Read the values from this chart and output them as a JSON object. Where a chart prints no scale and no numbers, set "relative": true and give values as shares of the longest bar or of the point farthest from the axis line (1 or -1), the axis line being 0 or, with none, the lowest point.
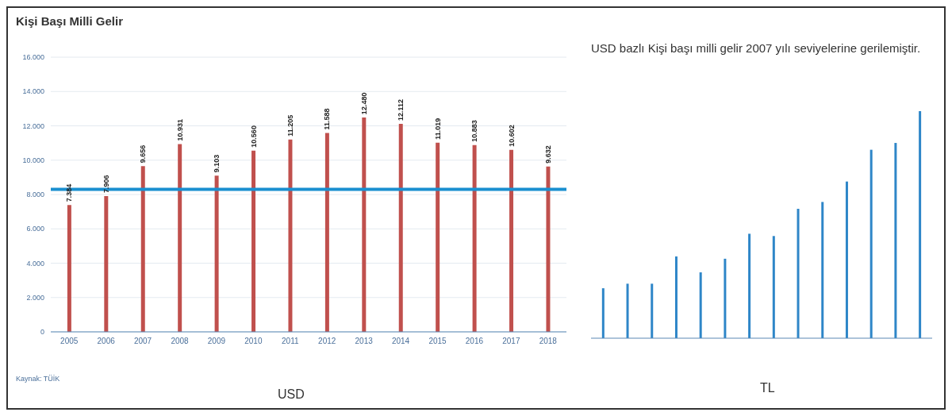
{
  "chart_data": [
    {
      "type": "bar",
      "title": "Kişi Başı Milli Gelir",
      "categories": [
        "2005",
        "2006",
        "2007",
        "2008",
        "2009",
        "2010",
        "2011",
        "2012",
        "2013",
        "2014",
        "2015",
        "2016",
        "2017",
        "2018"
      ],
      "series": [
        {
          "color": "#c0504d",
          "values": [
            7384,
            7906,
            9656,
            10931,
            9103,
            10560,
            11205,
            11588,
            12480,
            12112,
            11019,
            10883,
            10602,
            9632
          ],
          "value_labels": [
            "7.384",
            "7.906",
            "9.656",
            "10.931",
            "9.103",
            "10.560",
            "11.205",
            "11.588",
            "12.480",
            "12.112",
            "11.019",
            "10.883",
            "10.602",
            "9.632"
          ]
        }
      ],
      "ylim": [
        0,
        16000
      ],
      "yticks": [
        {
          "value": 0,
          "label": "0"
        },
        {
          "value": 2000,
          "label": "2.000"
        },
        {
          "value": 4000,
          "label": "4.000"
        },
        {
          "value": 6000,
          "label": "6.000"
        },
        {
          "value": 8000,
          "label": "8.000"
        },
        {
          "value": 10000,
          "label": "10.000"
        },
        {
          "value": 12000,
          "label": "12.000"
        },
        {
          "value": 14000,
          "label": "14.000"
        },
        {
          "value": 16000,
          "label": "16.000"
        }
      ],
      "grid": "y",
      "legend": false,
      "ref_lines": [
        {
          "axis": "y",
          "value": 8300,
          "color": "#1a8fd0"
        }
      ],
      "annotations": [
        "Kaynak: TÜİK",
        "USD"
      ]
    },
    {
      "type": "bar",
      "title": "USD bazlı Kişi başı milli gelir 2007 yılı seviyelerine gerilemiştir.",
      "relative": true,
      "categories": [
        null,
        null,
        null,
        null,
        null,
        null,
        null,
        null,
        null,
        null,
        null,
        null,
        null,
        null
      ],
      "series": [
        {
          "color": "#2e86c8",
          "values": [
            0.22,
            0.24,
            0.24,
            0.36,
            0.29,
            0.35,
            0.46,
            0.45,
            0.57,
            0.6,
            0.69,
            0.83,
            0.86,
            1
          ]
        }
      ],
      "legend": false,
      "annotations": [
        "TL"
      ]
    }
  ]
}
